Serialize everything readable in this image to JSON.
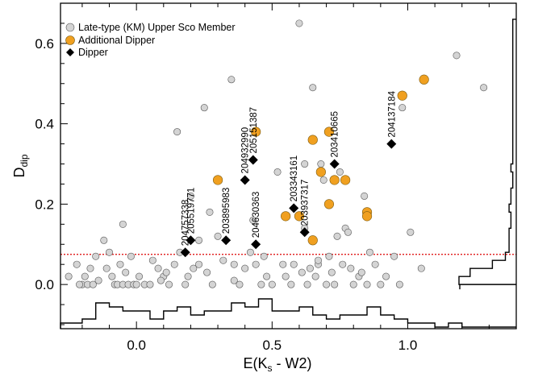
{
  "chart_data": {
    "type": "scatter",
    "xlabel_main": "E(K",
    "xlabel_sub": "s",
    "xlabel_tail": " - W2)",
    "ylabel_main": "D",
    "ylabel_sub": "dip",
    "xlim": [
      -0.28,
      1.4
    ],
    "ylim": [
      -0.11,
      0.7
    ],
    "x_ticks": [
      0.0,
      0.5,
      1.0
    ],
    "x_tick_labels": [
      "0.0",
      "0.5",
      "1.0"
    ],
    "y_ticks": [
      0.0,
      0.2,
      0.4,
      0.6
    ],
    "y_tick_labels": [
      "0.0",
      "0.2",
      "0.4",
      "0.6"
    ],
    "threshold_y": 0.075,
    "legend": {
      "position": "top-left",
      "entries": [
        {
          "label": "Late-type (KM) Upper Sco Member",
          "marker": "circle-gray"
        },
        {
          "label": "Additional Dipper",
          "marker": "circle-orange"
        },
        {
          "label": "Dipper",
          "marker": "diamond-black"
        }
      ]
    },
    "colors": {
      "member": "#d4d4d4",
      "member_edge": "#555555",
      "additional": "#f0a020",
      "additional_edge": "#7a5a10",
      "dipper": "#000000",
      "threshold": "#dd0000"
    },
    "series": [
      {
        "name": "Late-type (KM) Upper Sco Member",
        "points": [
          [
            -0.25,
            0.02
          ],
          [
            -0.22,
            0.05
          ],
          [
            -0.2,
            0.0
          ],
          [
            -0.19,
            0.02
          ],
          [
            -0.18,
            0.0
          ],
          [
            -0.17,
            0.04
          ],
          [
            -0.16,
            0.0
          ],
          [
            -0.15,
            0.07
          ],
          [
            -0.14,
            0.01
          ],
          [
            -0.12,
            0.11
          ],
          [
            -0.11,
            0.04
          ],
          [
            -0.1,
            0.08
          ],
          [
            -0.09,
            0.02
          ],
          [
            -0.08,
            0.0
          ],
          [
            -0.07,
            0.0
          ],
          [
            -0.06,
            0.05
          ],
          [
            -0.05,
            0.0
          ],
          [
            -0.04,
            0.03
          ],
          [
            -0.03,
            0.0
          ],
          [
            -0.02,
            0.07
          ],
          [
            -0.01,
            0.0
          ],
          [
            0.0,
            0.0
          ],
          [
            0.01,
            0.02
          ],
          [
            -0.05,
            0.15
          ],
          [
            0.03,
            0.0
          ],
          [
            0.06,
            0.06
          ],
          [
            0.08,
            0.04
          ],
          [
            0.1,
            0.02
          ],
          [
            0.12,
            0.0
          ],
          [
            0.14,
            0.05
          ],
          [
            0.15,
            0.38
          ],
          [
            0.16,
            0.08
          ],
          [
            0.18,
            0.0
          ],
          [
            0.19,
            0.02
          ],
          [
            0.21,
            0.04
          ],
          [
            0.23,
            0.11
          ],
          [
            0.25,
            0.44
          ],
          [
            0.26,
            0.03
          ],
          [
            0.28,
            0.0
          ],
          [
            0.3,
            0.12
          ],
          [
            0.32,
            0.06
          ],
          [
            0.35,
            0.51
          ],
          [
            0.36,
            0.05
          ],
          [
            0.38,
            0.0
          ],
          [
            0.4,
            0.04
          ],
          [
            0.42,
            0.08
          ],
          [
            0.44,
            0.05
          ],
          [
            0.46,
            0.0
          ],
          [
            0.48,
            0.02
          ],
          [
            0.5,
            0.0
          ],
          [
            0.52,
            0.28
          ],
          [
            0.54,
            0.05
          ],
          [
            0.55,
            0.02
          ],
          [
            0.57,
            0.0
          ],
          [
            0.58,
            0.05
          ],
          [
            0.6,
            0.65
          ],
          [
            0.61,
            0.03
          ],
          [
            0.62,
            0.14
          ],
          [
            0.63,
            0.0
          ],
          [
            0.64,
            0.04
          ],
          [
            0.65,
            0.49
          ],
          [
            0.66,
            0.02
          ],
          [
            0.67,
            0.05
          ],
          [
            0.68,
            0.3
          ],
          [
            0.69,
            0.26
          ],
          [
            0.7,
            0.0
          ],
          [
            0.71,
            0.07
          ],
          [
            0.72,
            0.03
          ],
          [
            0.73,
            0.0
          ],
          [
            0.75,
            0.28
          ],
          [
            0.76,
            0.05
          ],
          [
            0.77,
            0.14
          ],
          [
            0.78,
            0.13
          ],
          [
            0.8,
            0.0
          ],
          [
            0.82,
            0.02
          ],
          [
            0.83,
            0.03
          ],
          [
            0.84,
            0.22
          ],
          [
            0.85,
            0.0
          ],
          [
            0.86,
            0.08
          ],
          [
            0.88,
            0.05
          ],
          [
            0.9,
            0.0
          ],
          [
            0.92,
            0.02
          ],
          [
            0.95,
            0.07
          ],
          [
            0.97,
            0.0
          ],
          [
            0.98,
            0.44
          ],
          [
            1.01,
            0.13
          ],
          [
            1.05,
            0.04
          ],
          [
            1.18,
            0.57
          ],
          [
            1.28,
            0.49
          ],
          [
            0.05,
            0.0
          ],
          [
            0.2,
            0.22
          ],
          [
            0.27,
            0.18
          ],
          [
            0.43,
            0.16
          ],
          [
            0.62,
            0.3
          ],
          [
            0.74,
            0.12
          ],
          [
            0.36,
            0.01
          ],
          [
            0.47,
            0.07
          ],
          [
            0.55,
            0.17
          ],
          [
            0.79,
            0.04
          ],
          [
            0.11,
            0.03
          ],
          [
            -0.21,
            0.0
          ],
          [
            0.09,
            0.01
          ],
          [
            0.23,
            0.05
          ],
          [
            0.67,
            0.06
          ]
        ]
      },
      {
        "name": "Additional Dipper",
        "points": [
          [
            0.3,
            0.26
          ],
          [
            0.44,
            0.38
          ],
          [
            0.55,
            0.17
          ],
          [
            0.6,
            0.17
          ],
          [
            0.65,
            0.11
          ],
          [
            0.65,
            0.36
          ],
          [
            0.68,
            0.28
          ],
          [
            0.71,
            0.38
          ],
          [
            0.71,
            0.2
          ],
          [
            0.73,
            0.26
          ],
          [
            0.77,
            0.26
          ],
          [
            0.85,
            0.18
          ],
          [
            0.85,
            0.17
          ],
          [
            0.98,
            0.47
          ],
          [
            1.06,
            0.51
          ]
        ]
      },
      {
        "name": "Dipper",
        "points": [
          [
            0.18,
            0.08
          ],
          [
            0.2,
            0.11
          ],
          [
            0.33,
            0.11
          ],
          [
            0.4,
            0.26
          ],
          [
            0.43,
            0.31
          ],
          [
            0.44,
            0.1
          ],
          [
            0.58,
            0.19
          ],
          [
            0.62,
            0.13
          ],
          [
            0.73,
            0.3
          ],
          [
            0.94,
            0.35
          ]
        ]
      }
    ],
    "dipper_labels": [
      {
        "text": "204757338",
        "x": 0.18,
        "y": 0.08
      },
      {
        "text": "205519771",
        "x": 0.2,
        "y": 0.11
      },
      {
        "text": "203895983",
        "x": 0.33,
        "y": 0.11
      },
      {
        "text": "204932990",
        "x": 0.4,
        "y": 0.26
      },
      {
        "text": "205151387",
        "x": 0.43,
        "y": 0.31
      },
      {
        "text": "204630363",
        "x": 0.44,
        "y": 0.1
      },
      {
        "text": "203343161",
        "x": 0.58,
        "y": 0.19
      },
      {
        "text": "203937317",
        "x": 0.62,
        "y": 0.13
      },
      {
        "text": "203410665",
        "x": 0.73,
        "y": 0.3
      },
      {
        "text": "204137184",
        "x": 0.94,
        "y": 0.35
      }
    ],
    "histogram_x": {
      "bins": [
        -0.28,
        -0.2,
        -0.15,
        -0.1,
        -0.05,
        0.0,
        0.05,
        0.1,
        0.15,
        0.2,
        0.25,
        0.3,
        0.35,
        0.4,
        0.45,
        0.5,
        0.55,
        0.6,
        0.65,
        0.7,
        0.75,
        0.8,
        0.85,
        0.9,
        0.95,
        1.0,
        1.05,
        1.1,
        1.15,
        1.2,
        1.4
      ],
      "counts": [
        1,
        2,
        6,
        5,
        4,
        4,
        2,
        4,
        5,
        3,
        4,
        4,
        6,
        5,
        7,
        4,
        4,
        5,
        3,
        2,
        3,
        3,
        5,
        3,
        2,
        1,
        1,
        0,
        1,
        0
      ]
    },
    "histogram_y": {
      "bins": [
        0.0,
        0.02,
        0.04,
        0.06,
        0.08,
        0.1,
        0.12,
        0.14,
        0.16,
        0.18,
        0.2,
        0.22,
        0.24,
        0.26,
        0.28,
        0.3,
        0.32,
        0.34,
        0.36,
        0.38,
        0.4,
        0.42,
        0.44,
        0.46,
        0.48,
        0.5,
        0.52,
        0.54,
        0.56,
        0.58,
        0.6,
        0.62,
        0.64,
        0.66
      ],
      "counts": [
        30,
        24,
        12,
        5,
        3,
        3,
        3,
        2,
        2,
        3,
        2,
        2,
        1,
        1,
        2,
        1,
        1,
        1,
        1,
        1,
        1,
        1,
        1,
        1,
        1,
        1,
        1,
        1,
        1,
        1,
        1,
        1,
        1
      ]
    }
  }
}
